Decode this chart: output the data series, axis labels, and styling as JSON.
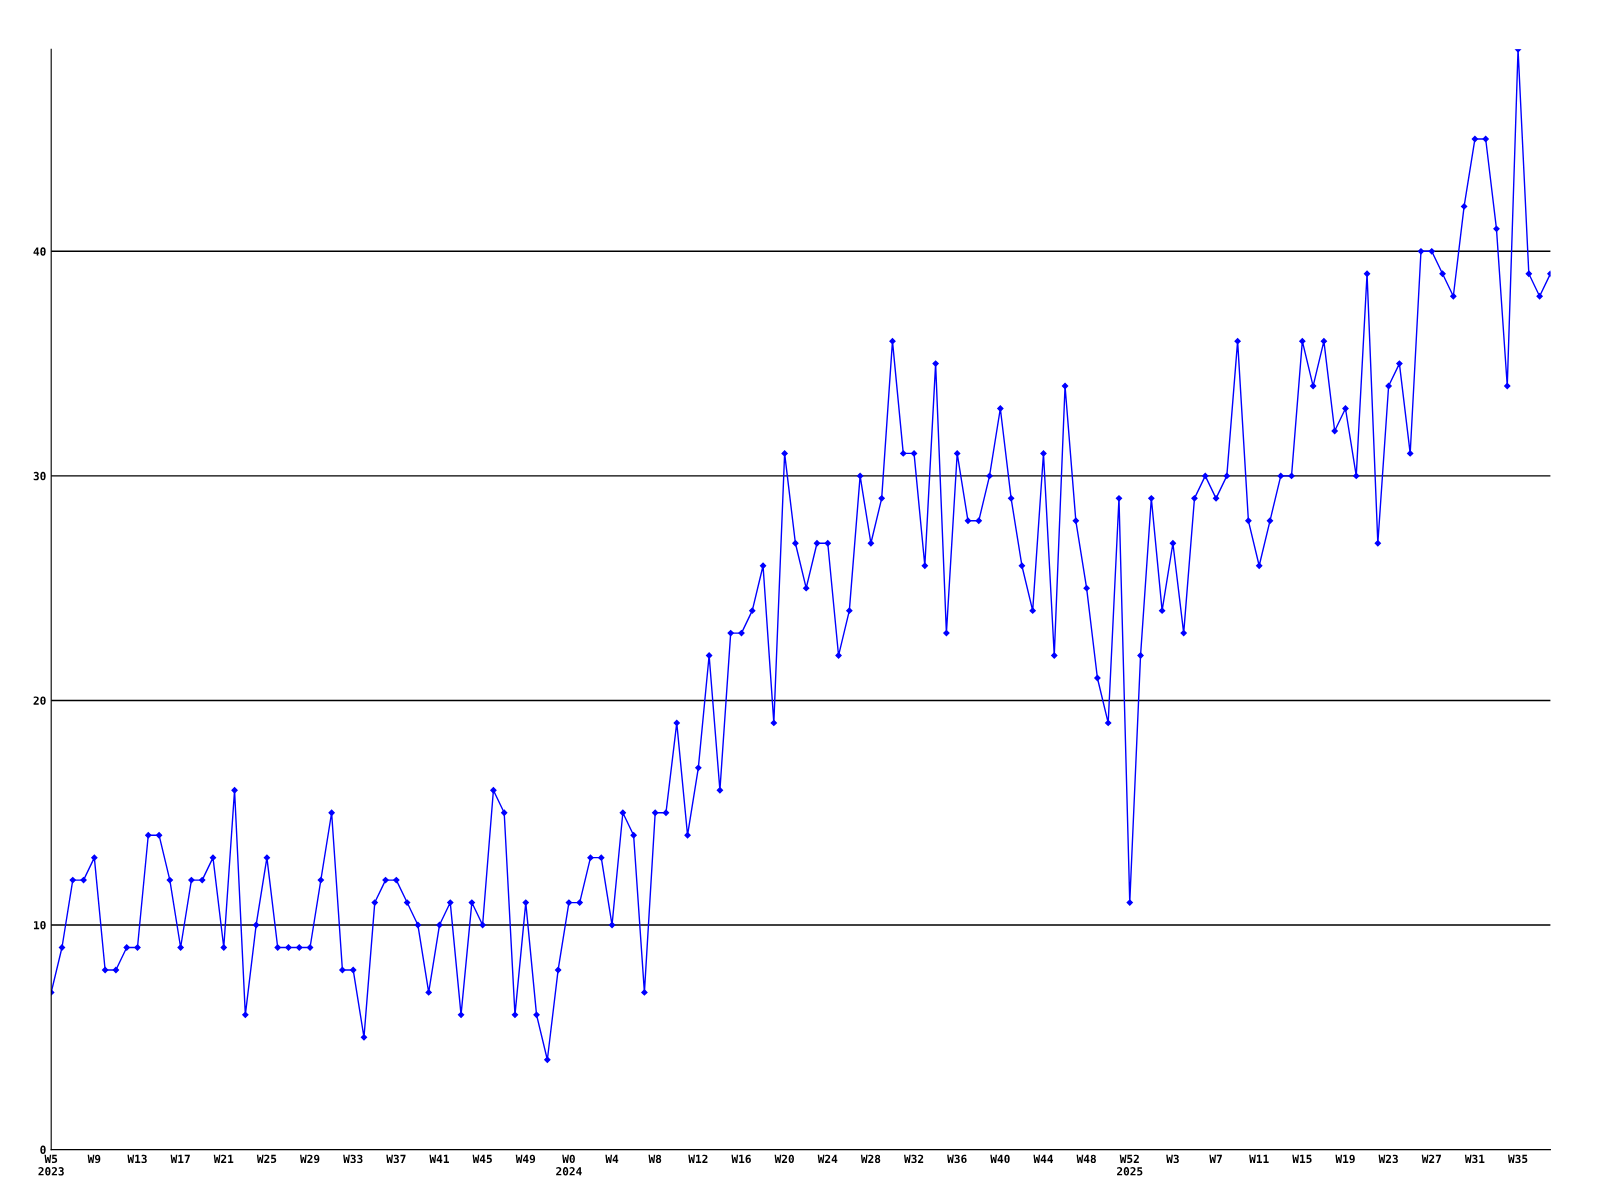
{
  "chart_data": {
    "type": "line",
    "categories": [
      "W5\n2023",
      null,
      null,
      null,
      "W9",
      null,
      null,
      null,
      "W13",
      null,
      null,
      null,
      "W17",
      null,
      null,
      null,
      "W21",
      null,
      null,
      null,
      "W25",
      null,
      null,
      null,
      "W29",
      null,
      null,
      null,
      "W33",
      null,
      null,
      null,
      "W37",
      null,
      null,
      null,
      "W41",
      null,
      null,
      null,
      "W45",
      null,
      null,
      null,
      "W49",
      null,
      null,
      null,
      "W0\n2024",
      null,
      null,
      null,
      "W4",
      null,
      null,
      null,
      "W8",
      null,
      null,
      null,
      "W12",
      null,
      null,
      null,
      "W16",
      null,
      null,
      null,
      "W20",
      null,
      null,
      null,
      "W24",
      null,
      null,
      null,
      "W28",
      null,
      null,
      null,
      "W32",
      null,
      null,
      null,
      "W36",
      null,
      null,
      null,
      "W40",
      null,
      null,
      null,
      "W44",
      null,
      null,
      null,
      "W48",
      null,
      null,
      null,
      "W52\n2025",
      null,
      null,
      null,
      "W3",
      null,
      null,
      null,
      "W7",
      null,
      null,
      null,
      "W11",
      null,
      null,
      null,
      "W15",
      null,
      null,
      null,
      "W19",
      null,
      null,
      null,
      "W23",
      null,
      null,
      null,
      "W27",
      null,
      null,
      null,
      "W31",
      null,
      null,
      null,
      "W35",
      null,
      null,
      null
    ],
    "series": [
      {
        "color": "#0000ff",
        "values": [
          7,
          9,
          12,
          12,
          13,
          8,
          8,
          9,
          9,
          14,
          14,
          12,
          9,
          12,
          12,
          13,
          9,
          16,
          6,
          10,
          13,
          9,
          9,
          9,
          9,
          12,
          15,
          8,
          8,
          5,
          11,
          12,
          12,
          11,
          10,
          7,
          10,
          11,
          6,
          11,
          10,
          16,
          15,
          6,
          11,
          6,
          4,
          8,
          11,
          11,
          13,
          13,
          10,
          15,
          14,
          7,
          15,
          15,
          19,
          14,
          17,
          22,
          16,
          23,
          23,
          24,
          26,
          19,
          31,
          27,
          25,
          27,
          27,
          22,
          24,
          30,
          27,
          29,
          36,
          31,
          31,
          26,
          35,
          23,
          31,
          28,
          28,
          30,
          33,
          29,
          26,
          24,
          31,
          22,
          34,
          28,
          25,
          21,
          19,
          29,
          11,
          22,
          29,
          24,
          27,
          23,
          29,
          30,
          29,
          30,
          36,
          28,
          26,
          28,
          30,
          30,
          36,
          34,
          36,
          32,
          33,
          30,
          39,
          27,
          34,
          35,
          31,
          40,
          40,
          39,
          38,
          42,
          45,
          45,
          41,
          34,
          49,
          39,
          38,
          39
        ]
      }
    ],
    "ylim": [
      0,
      49
    ],
    "yticks": [
      0,
      10,
      20,
      30,
      40
    ],
    "grid": "y",
    "marker": "diamond",
    "line_style": "solid",
    "legend": false
  }
}
